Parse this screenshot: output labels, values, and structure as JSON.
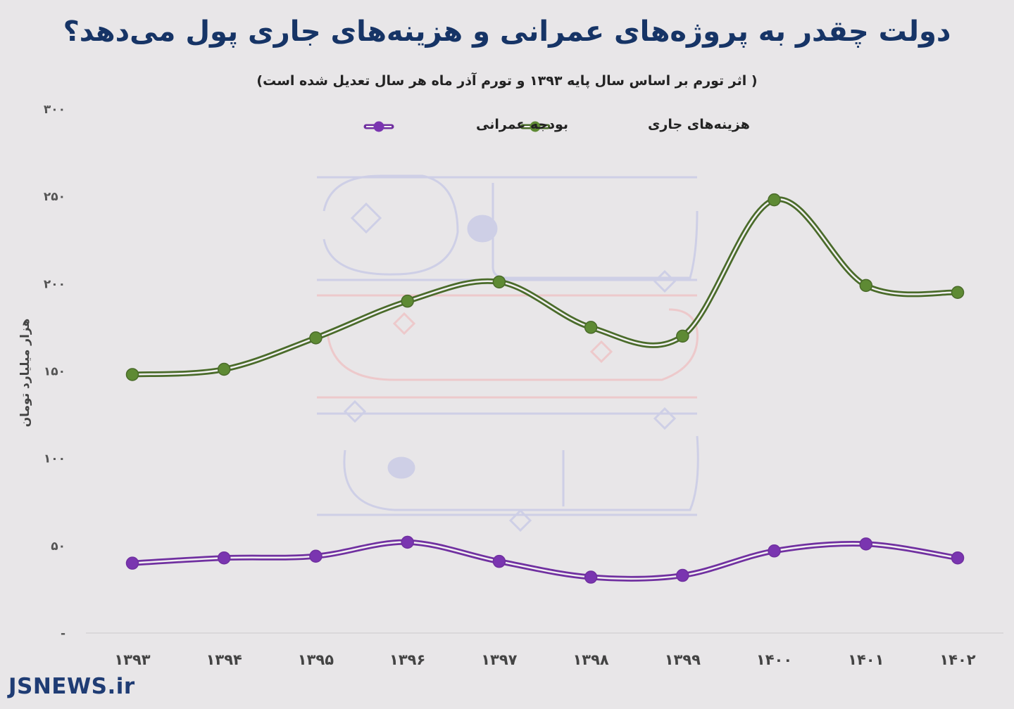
{
  "chart_data": {
    "type": "line",
    "title": "دولت چقدر به پروژه‌های عمرانی و هزینه‌های جاری پول می‌دهد؟",
    "subtitle": "( اثر تورم بر اساس سال پایه ۱۳۹۳ و تورم آذر ماه هر سال تعدیل شده است)",
    "ylabel": "هزار میلیارد تومان",
    "xlabel": "",
    "categories": [
      "۱۳۹۳",
      "۱۳۹۴",
      "۱۳۹۵",
      "۱۳۹۶",
      "۱۳۹۷",
      "۱۳۹۸",
      "۱۳۹۹",
      "۱۴۰۰",
      "۱۴۰۱",
      "۱۴۰۲"
    ],
    "ylim": [
      0,
      300
    ],
    "yticks": [
      0,
      50,
      100,
      150,
      200,
      250,
      300
    ],
    "ytick_labels": [
      "-",
      "۵۰",
      "۱۰۰",
      "۱۵۰",
      "۲۰۰",
      "۲۵۰",
      "۳۰۰"
    ],
    "series": [
      {
        "name": "هزینه‌های جاری",
        "color": "#4a6b2a",
        "values": [
          148,
          151,
          169,
          190,
          201,
          175,
          170,
          248,
          199,
          195
        ]
      },
      {
        "name": "بودجه عمرانی",
        "color": "#7030a0",
        "values": [
          40,
          43,
          44,
          52,
          41,
          32,
          33,
          47,
          51,
          43
        ]
      }
    ],
    "legend_position": "top-center",
    "smooth": true,
    "grid": false
  },
  "brand": "JSNEWS.ir"
}
